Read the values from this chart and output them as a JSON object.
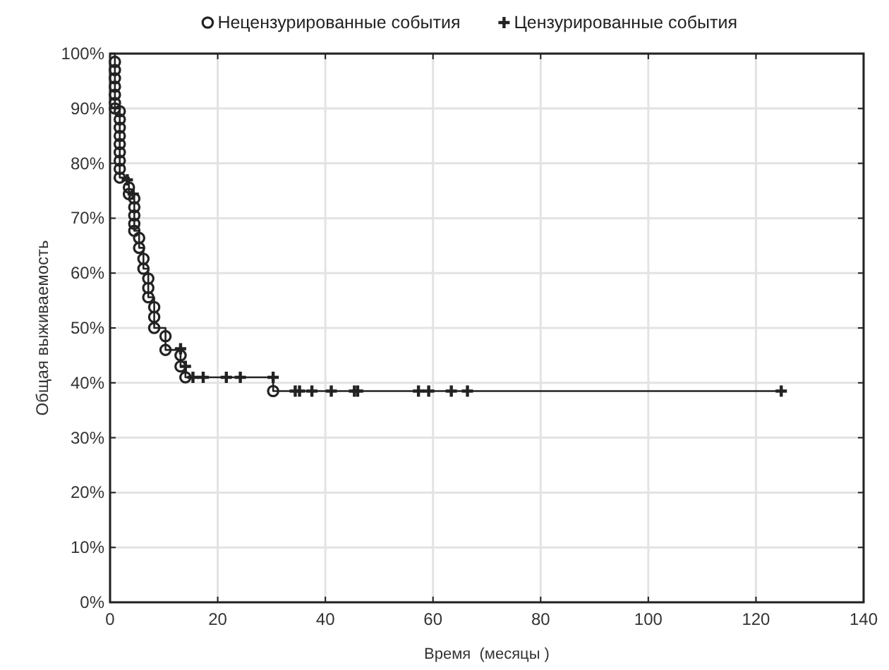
{
  "chart_data": {
    "type": "step",
    "xlabel": "Время  (месяцы )",
    "ylabel": "Общая выживаемость",
    "xlim": [
      0,
      140
    ],
    "xticks": [
      0,
      20,
      40,
      60,
      80,
      100,
      120,
      140
    ],
    "ylim": [
      0,
      100
    ],
    "yticks": [
      {
        "value": 0,
        "label": "0%"
      },
      {
        "value": 10,
        "label": "10%"
      },
      {
        "value": 20,
        "label": "20%"
      },
      {
        "value": 30,
        "label": "30%"
      },
      {
        "value": 40,
        "label": "40%"
      },
      {
        "value": 50,
        "label": "50%"
      },
      {
        "value": 60,
        "label": "60%"
      },
      {
        "value": 70,
        "label": "70%"
      },
      {
        "value": 80,
        "label": "80%"
      },
      {
        "value": 90,
        "label": "90%"
      },
      {
        "value": 100,
        "label": "100%"
      }
    ],
    "grid": true,
    "legend": "top",
    "series": [
      {
        "color": "#222222",
        "marker": "none",
        "x": [
          0,
          0.9,
          1.8,
          3.5,
          4.5,
          5.4,
          6.2,
          7.1,
          8.2,
          10.3,
          13.1,
          14,
          30.3,
          124.7
        ],
        "values": [
          100,
          90,
          77.4,
          74.4,
          67.7,
          64.6,
          60.8,
          55.6,
          50,
          46,
          43,
          41,
          38.5,
          38.5
        ]
      },
      {
        "type": "scatter",
        "name": "Нецензурированные события",
        "color": "#222222",
        "marker": "circle",
        "x": [
          0.9,
          0.9,
          0.9,
          0.9,
          0.9,
          0.9,
          0.9,
          1.8,
          1.8,
          1.8,
          1.8,
          1.8,
          1.8,
          1.8,
          1.8,
          1.8,
          3.5,
          3.5,
          4.5,
          4.5,
          4.5,
          4.5,
          4.5,
          5.4,
          5.4,
          6.2,
          6.2,
          7.1,
          7.1,
          7.1,
          8.2,
          8.2,
          8.2,
          10.3,
          10.3,
          13.1,
          13.1,
          14,
          30.3
        ],
        "values": [
          98.5,
          97,
          95.5,
          94,
          92.5,
          91,
          90,
          89.5,
          88,
          86.5,
          85,
          83.5,
          82,
          80.5,
          79,
          77.4,
          75.6,
          74.4,
          73.6,
          72,
          70.5,
          69,
          67.7,
          66.4,
          64.6,
          62.6,
          60.8,
          59,
          57.3,
          55.6,
          53.8,
          52,
          50,
          48.5,
          46,
          45,
          43,
          41,
          38.5
        ]
      },
      {
        "type": "scatter",
        "name": "Цензурированные события",
        "color": "#222222",
        "marker": "cross",
        "x": [
          3.2,
          4.3,
          13.1,
          14,
          15.4,
          17.3,
          21.6,
          24.2,
          30.3,
          34.4,
          35.2,
          37.5,
          41.1,
          45.4,
          46,
          57.3,
          59.2,
          63.4,
          66.4,
          124.7
        ],
        "values": [
          77,
          74.4,
          46.2,
          43,
          41,
          41,
          41,
          41,
          41,
          38.5,
          38.5,
          38.5,
          38.5,
          38.5,
          38.5,
          38.5,
          38.5,
          38.5,
          38.5,
          38.5
        ]
      }
    ]
  }
}
